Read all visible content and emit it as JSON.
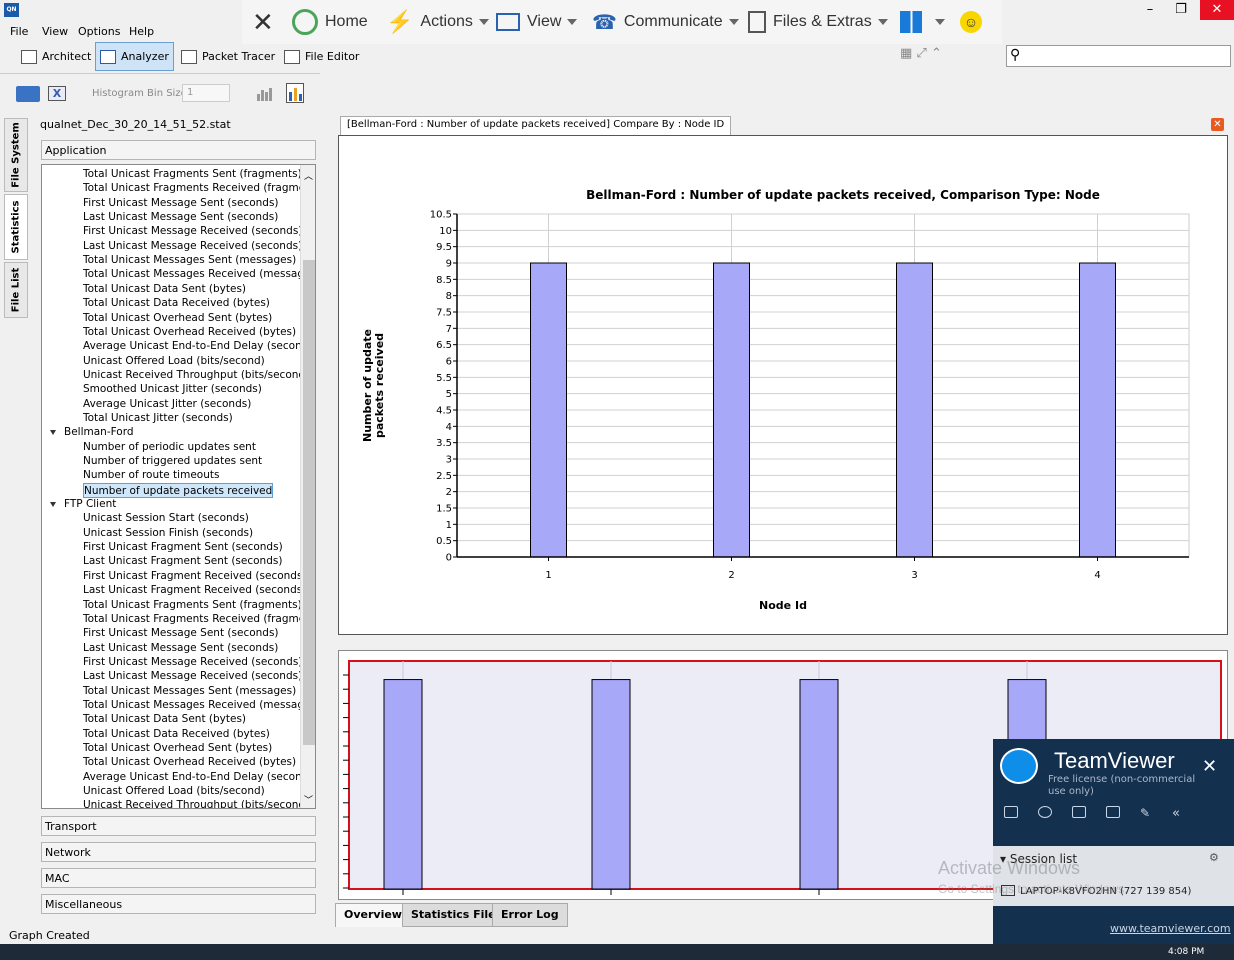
{
  "menu": [
    "File",
    "View",
    "Options",
    "Help"
  ],
  "app_icon_text": "QN",
  "teamviewer_toolbar": {
    "home": "Home",
    "actions": "Actions",
    "view": "View",
    "communicate": "Communicate",
    "files": "Files & Extras"
  },
  "modes": {
    "architect": "Architect",
    "analyzer": "Analyzer",
    "packet_tracer": "Packet Tracer",
    "file_editor": "File Editor"
  },
  "histogram": {
    "label": "Histogram Bin Size",
    "value": "1"
  },
  "side_tabs": {
    "file_system": "File System",
    "statistics": "Statistics",
    "file_list": "File List"
  },
  "stat_file": "qualnet_Dec_30_20_14_51_52.stat",
  "accordion": {
    "application": "Application",
    "transport": "Transport",
    "network": "Network",
    "mac": "MAC",
    "misc": "Miscellaneous"
  },
  "tree": [
    {
      "t": "Total Unicast Fragments Sent (fragments)",
      "g": false
    },
    {
      "t": "Total Unicast Fragments Received (fragmen...",
      "g": false
    },
    {
      "t": "First Unicast Message Sent (seconds)",
      "g": false
    },
    {
      "t": "Last Unicast Message Sent (seconds)",
      "g": false
    },
    {
      "t": "First Unicast Message Received (seconds)",
      "g": false
    },
    {
      "t": "Last Unicast Message Received (seconds)",
      "g": false
    },
    {
      "t": "Total Unicast Messages Sent (messages)",
      "g": false
    },
    {
      "t": "Total Unicast Messages Received (messages)",
      "g": false
    },
    {
      "t": "Total Unicast Data Sent (bytes)",
      "g": false
    },
    {
      "t": "Total Unicast Data Received (bytes)",
      "g": false
    },
    {
      "t": "Total Unicast Overhead Sent (bytes)",
      "g": false
    },
    {
      "t": "Total Unicast Overhead Received (bytes)",
      "g": false
    },
    {
      "t": "Average Unicast End-to-End Delay (seconds)",
      "g": false
    },
    {
      "t": "Unicast Offered Load (bits/second)",
      "g": false
    },
    {
      "t": "Unicast Received Throughput (bits/second)",
      "g": false
    },
    {
      "t": "Smoothed Unicast Jitter (seconds)",
      "g": false
    },
    {
      "t": "Average Unicast Jitter (seconds)",
      "g": false
    },
    {
      "t": "Total Unicast Jitter (seconds)",
      "g": false
    },
    {
      "t": "Bellman-Ford",
      "g": true
    },
    {
      "t": "Number of periodic updates sent",
      "g": false
    },
    {
      "t": "Number of triggered updates sent",
      "g": false
    },
    {
      "t": "Number of route timeouts",
      "g": false
    },
    {
      "t": "Number of update packets received",
      "g": false,
      "selected": true
    },
    {
      "t": "FTP Client",
      "g": true
    },
    {
      "t": "Unicast Session Start (seconds)",
      "g": false
    },
    {
      "t": "Unicast Session Finish (seconds)",
      "g": false
    },
    {
      "t": "First Unicast Fragment Sent (seconds)",
      "g": false
    },
    {
      "t": "Last Unicast Fragment Sent (seconds)",
      "g": false
    },
    {
      "t": "First Unicast Fragment Received (seconds)",
      "g": false
    },
    {
      "t": "Last Unicast Fragment Received (seconds)",
      "g": false
    },
    {
      "t": "Total Unicast Fragments Sent (fragments)",
      "g": false
    },
    {
      "t": "Total Unicast Fragments Received (fragmen...",
      "g": false
    },
    {
      "t": "First Unicast Message Sent (seconds)",
      "g": false
    },
    {
      "t": "Last Unicast Message Sent (seconds)",
      "g": false
    },
    {
      "t": "First Unicast Message Received (seconds)",
      "g": false
    },
    {
      "t": "Last Unicast Message Received (seconds)",
      "g": false
    },
    {
      "t": "Total Unicast Messages Sent (messages)",
      "g": false
    },
    {
      "t": "Total Unicast Messages Received (messages)",
      "g": false
    },
    {
      "t": "Total Unicast Data Sent (bytes)",
      "g": false
    },
    {
      "t": "Total Unicast Data Received (bytes)",
      "g": false
    },
    {
      "t": "Total Unicast Overhead Sent (bytes)",
      "g": false
    },
    {
      "t": "Total Unicast Overhead Received (bytes)",
      "g": false
    },
    {
      "t": "Average Unicast End-to-End Delay (seconds)",
      "g": false
    },
    {
      "t": "Unicast Offered Load (bits/second)",
      "g": false
    },
    {
      "t": "Unicast Received Throughput (bits/second)",
      "g": false
    }
  ],
  "chart_tab": "[Bellman-Ford :  Number of update packets received] Compare By : Node ID",
  "chart_data": {
    "type": "bar",
    "title": "Bellman-Ford :  Number of update packets received, Comparison Type: Node",
    "xlabel": "Node Id",
    "ylabel": "Number of update packets received",
    "categories": [
      "1",
      "2",
      "3",
      "4"
    ],
    "values": [
      9,
      9,
      9,
      9
    ],
    "ylim": [
      0,
      10.5
    ],
    "yticks": [
      "0",
      "0.5",
      "1",
      "1.5",
      "2",
      "2.5",
      "3",
      "3.5",
      "4",
      "4.5",
      "5",
      "5.5",
      "6",
      "6.5",
      "7",
      "7.5",
      "8",
      "8.5",
      "9",
      "9.5",
      "10",
      "10.5"
    ],
    "grid": true,
    "bar_color": "#a8a8f8"
  },
  "bottom_tabs": {
    "overview": "Overview",
    "stats_file": "Statistics File",
    "error_log": "Error Log"
  },
  "status": "Graph Created",
  "teamviewer": {
    "brand": "TeamViewer",
    "license": "Free license (non-commercial use only)",
    "session_list": "Session list",
    "session_item": "LAPTOP-K8VFO2HN (727 139 854)",
    "link": "www.teamviewer.com"
  },
  "watermark": {
    "line1": "Activate Windows",
    "line2": "Go to Settings to activate Windows."
  },
  "clock": "4:08 PM"
}
